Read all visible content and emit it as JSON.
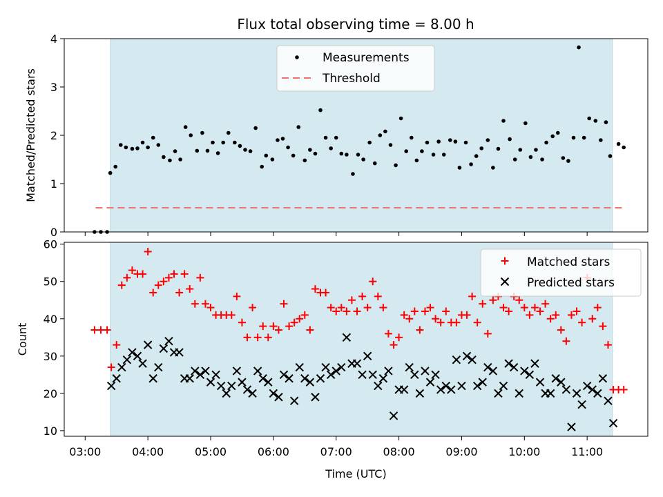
{
  "chart_data": [
    {
      "type": "scatter",
      "title": "Flux total observing time = 8.00 h",
      "ylabel": "Matched/Predicted stars",
      "xlabel": "",
      "ylim": [
        0,
        4
      ],
      "xlim": [
        "02:40",
        "11:58"
      ],
      "yticks": [
        0,
        1,
        2,
        3,
        4
      ],
      "xticks": [
        "03:00",
        "04:00",
        "05:00",
        "06:00",
        "07:00",
        "08:00",
        "09:00",
        "10:00",
        "11:00"
      ],
      "observing_window": [
        "03:24",
        "11:24"
      ],
      "window_color": "#d4eaf0",
      "legend": {
        "placement": "top-center",
        "entries": [
          "Measurements",
          "Threshold"
        ]
      },
      "threshold": {
        "name": "Threshold",
        "value": 0.5,
        "x_range": [
          "03:10",
          "11:35"
        ],
        "color": "#f07070"
      },
      "series": [
        {
          "name": "Measurements",
          "color": "#000000",
          "x": [
            "03:09",
            "03:15",
            "03:21",
            "03:24",
            "03:29",
            "03:34",
            "03:39",
            "03:45",
            "03:50",
            "03:55",
            "04:00",
            "04:05",
            "04:10",
            "04:15",
            "04:21",
            "04:26",
            "04:31",
            "04:36",
            "04:41",
            "04:47",
            "04:52",
            "04:57",
            "05:02",
            "05:07",
            "05:12",
            "05:17",
            "05:23",
            "05:28",
            "05:33",
            "05:38",
            "05:43",
            "05:49",
            "05:53",
            "05:59",
            "06:04",
            "06:09",
            "06:14",
            "06:19",
            "06:24",
            "06:30",
            "06:35",
            "06:40",
            "06:45",
            "06:50",
            "06:55",
            "07:00",
            "07:05",
            "07:10",
            "07:16",
            "07:21",
            "07:26",
            "07:32",
            "07:37",
            "07:42",
            "07:47",
            "07:52",
            "07:57",
            "08:02",
            "08:07",
            "08:12",
            "08:17",
            "08:22",
            "08:27",
            "08:33",
            "08:38",
            "08:43",
            "08:49",
            "08:54",
            "08:58",
            "09:04",
            "09:09",
            "09:14",
            "09:19",
            "09:25",
            "09:30",
            "09:35",
            "09:40",
            "09:46",
            "09:51",
            "09:56",
            "10:01",
            "10:06",
            "10:11",
            "10:17",
            "10:21",
            "10:27",
            "10:32",
            "10:37",
            "10:42",
            "10:47",
            "10:52",
            "10:57",
            "11:02",
            "11:08",
            "11:13",
            "11:18",
            "11:22",
            "11:30",
            "11:35"
          ],
          "y": [
            0,
            0,
            0,
            1.22,
            1.35,
            1.8,
            1.75,
            1.72,
            1.73,
            1.85,
            1.75,
            1.95,
            1.8,
            1.55,
            1.48,
            1.67,
            1.5,
            2.17,
            2.0,
            1.68,
            2.05,
            1.68,
            1.85,
            1.63,
            1.85,
            2.05,
            1.85,
            1.78,
            1.7,
            1.67,
            2.15,
            1.35,
            1.58,
            1.5,
            1.9,
            1.93,
            1.75,
            1.58,
            2.17,
            1.48,
            1.7,
            1.62,
            2.52,
            1.95,
            1.73,
            1.95,
            1.62,
            1.6,
            1.2,
            1.6,
            1.5,
            1.85,
            1.42,
            2.0,
            2.08,
            1.8,
            1.38,
            2.35,
            1.67,
            1.95,
            1.48,
            1.67,
            1.85,
            1.6,
            1.87,
            1.6,
            1.9,
            1.87,
            1.33,
            1.85,
            1.4,
            1.57,
            1.73,
            1.9,
            1.33,
            1.72,
            2.3,
            1.92,
            1.5,
            1.7,
            2.25,
            1.55,
            1.7,
            1.5,
            1.85,
            1.98,
            2.05,
            1.53,
            1.47,
            1.95,
            3.82,
            1.95,
            2.35,
            2.3,
            1.9,
            2.27,
            1.57,
            1.82,
            1.75
          ]
        }
      ]
    },
    {
      "type": "scatter",
      "title": "",
      "ylabel": "Count",
      "xlabel": "Time (UTC)",
      "ylim": [
        8.5,
        60.5
      ],
      "xlim": [
        "02:40",
        "11:58"
      ],
      "yticks": [
        10,
        20,
        30,
        40,
        50,
        60
      ],
      "xticks": [
        "03:00",
        "04:00",
        "05:00",
        "06:00",
        "07:00",
        "08:00",
        "09:00",
        "10:00",
        "11:00"
      ],
      "observing_window": [
        "03:24",
        "11:24"
      ],
      "window_color": "#d4eaf0",
      "legend": {
        "placement": "top-right",
        "entries": [
          "Matched stars",
          "Predicted stars"
        ]
      },
      "series": [
        {
          "name": "Matched stars",
          "marker": "plus",
          "color": "#ff0000",
          "points": [
            [
              "03:09",
              37
            ],
            [
              "03:15",
              37
            ],
            [
              "03:21",
              37
            ],
            [
              "03:25",
              27
            ],
            [
              "03:30",
              33
            ],
            [
              "03:35",
              49
            ],
            [
              "03:40",
              51
            ],
            [
              "03:45",
              53
            ],
            [
              "03:50",
              52
            ],
            [
              "03:55",
              52
            ],
            [
              "04:00",
              58
            ],
            [
              "04:05",
              47
            ],
            [
              "04:10",
              49
            ],
            [
              "04:15",
              50
            ],
            [
              "04:20",
              51
            ],
            [
              "04:25",
              52
            ],
            [
              "04:30",
              47
            ],
            [
              "04:35",
              52
            ],
            [
              "04:40",
              48
            ],
            [
              "04:45",
              44
            ],
            [
              "04:50",
              51
            ],
            [
              "04:55",
              44
            ],
            [
              "05:00",
              43
            ],
            [
              "05:05",
              41
            ],
            [
              "05:10",
              41
            ],
            [
              "05:15",
              41
            ],
            [
              "05:20",
              41
            ],
            [
              "05:25",
              46
            ],
            [
              "05:30",
              39
            ],
            [
              "05:35",
              35
            ],
            [
              "05:40",
              43
            ],
            [
              "05:45",
              35
            ],
            [
              "05:50",
              38
            ],
            [
              "05:55",
              35
            ],
            [
              "06:00",
              38
            ],
            [
              "06:05",
              37
            ],
            [
              "06:10",
              44
            ],
            [
              "06:15",
              38
            ],
            [
              "06:20",
              39
            ],
            [
              "06:25",
              40
            ],
            [
              "06:30",
              41
            ],
            [
              "06:35",
              37
            ],
            [
              "06:40",
              48
            ],
            [
              "06:45",
              47
            ],
            [
              "06:50",
              47
            ],
            [
              "06:55",
              43
            ],
            [
              "07:00",
              42
            ],
            [
              "07:05",
              43
            ],
            [
              "07:10",
              42
            ],
            [
              "07:15",
              45
            ],
            [
              "07:20",
              42
            ],
            [
              "07:25",
              46
            ],
            [
              "07:30",
              43
            ],
            [
              "07:35",
              50
            ],
            [
              "07:40",
              46
            ],
            [
              "07:45",
              43
            ],
            [
              "07:50",
              36
            ],
            [
              "07:55",
              33
            ],
            [
              "08:00",
              35
            ],
            [
              "08:05",
              41
            ],
            [
              "08:10",
              40
            ],
            [
              "08:15",
              42
            ],
            [
              "08:20",
              37
            ],
            [
              "08:25",
              42
            ],
            [
              "08:30",
              43
            ],
            [
              "08:35",
              40
            ],
            [
              "08:40",
              39
            ],
            [
              "08:45",
              42
            ],
            [
              "08:50",
              39
            ],
            [
              "08:55",
              39
            ],
            [
              "09:00",
              41
            ],
            [
              "09:05",
              41
            ],
            [
              "09:10",
              46
            ],
            [
              "09:15",
              39
            ],
            [
              "09:20",
              44
            ],
            [
              "09:25",
              36
            ],
            [
              "09:30",
              45
            ],
            [
              "09:35",
              46
            ],
            [
              "09:40",
              43
            ],
            [
              "09:45",
              42
            ],
            [
              "09:50",
              46
            ],
            [
              "09:55",
              45
            ],
            [
              "10:00",
              43
            ],
            [
              "10:05",
              41
            ],
            [
              "10:10",
              43
            ],
            [
              "10:15",
              42
            ],
            [
              "10:20",
              44
            ],
            [
              "10:25",
              40
            ],
            [
              "10:30",
              41
            ],
            [
              "10:35",
              37
            ],
            [
              "10:40",
              34
            ],
            [
              "10:45",
              41
            ],
            [
              "10:50",
              42
            ],
            [
              "10:55",
              39
            ],
            [
              "11:00",
              51
            ],
            [
              "11:05",
              40
            ],
            [
              "11:10",
              43
            ],
            [
              "11:15",
              38
            ],
            [
              "11:20",
              33
            ],
            [
              "11:25",
              21
            ],
            [
              "11:30",
              21
            ],
            [
              "11:35",
              21
            ]
          ]
        },
        {
          "name": "Predicted stars",
          "marker": "x",
          "color": "#000000",
          "points": [
            [
              "03:25",
              22
            ],
            [
              "03:30",
              24
            ],
            [
              "03:35",
              27
            ],
            [
              "03:40",
              29
            ],
            [
              "03:45",
              31
            ],
            [
              "03:50",
              30
            ],
            [
              "03:55",
              28
            ],
            [
              "04:00",
              33
            ],
            [
              "04:05",
              24
            ],
            [
              "04:10",
              27
            ],
            [
              "04:15",
              32
            ],
            [
              "04:20",
              34
            ],
            [
              "04:25",
              31
            ],
            [
              "04:30",
              31
            ],
            [
              "04:35",
              24
            ],
            [
              "04:40",
              24
            ],
            [
              "04:45",
              26
            ],
            [
              "04:50",
              25
            ],
            [
              "04:55",
              26
            ],
            [
              "05:00",
              23
            ],
            [
              "05:05",
              25
            ],
            [
              "05:10",
              22
            ],
            [
              "05:15",
              20
            ],
            [
              "05:20",
              22
            ],
            [
              "05:25",
              26
            ],
            [
              "05:30",
              23
            ],
            [
              "05:35",
              21
            ],
            [
              "05:40",
              20
            ],
            [
              "05:45",
              26
            ],
            [
              "05:50",
              24
            ],
            [
              "05:55",
              23
            ],
            [
              "06:00",
              20
            ],
            [
              "06:05",
              19
            ],
            [
              "06:10",
              25
            ],
            [
              "06:15",
              24
            ],
            [
              "06:20",
              18
            ],
            [
              "06:25",
              27
            ],
            [
              "06:30",
              24
            ],
            [
              "06:35",
              23
            ],
            [
              "06:40",
              19
            ],
            [
              "06:45",
              24
            ],
            [
              "06:50",
              27
            ],
            [
              "06:55",
              25
            ],
            [
              "07:00",
              26
            ],
            [
              "07:05",
              27
            ],
            [
              "07:10",
              35
            ],
            [
              "07:15",
              28
            ],
            [
              "07:20",
              28
            ],
            [
              "07:25",
              25
            ],
            [
              "07:30",
              30
            ],
            [
              "07:35",
              25
            ],
            [
              "07:40",
              22
            ],
            [
              "07:45",
              24
            ],
            [
              "07:50",
              26
            ],
            [
              "07:55",
              14
            ],
            [
              "08:00",
              21
            ],
            [
              "08:05",
              21
            ],
            [
              "08:10",
              27
            ],
            [
              "08:15",
              25
            ],
            [
              "08:20",
              20
            ],
            [
              "08:25",
              26
            ],
            [
              "08:30",
              23
            ],
            [
              "08:35",
              25
            ],
            [
              "08:40",
              21
            ],
            [
              "08:45",
              22
            ],
            [
              "08:50",
              21
            ],
            [
              "08:55",
              29
            ],
            [
              "09:00",
              22
            ],
            [
              "09:05",
              30
            ],
            [
              "09:10",
              29
            ],
            [
              "09:15",
              22
            ],
            [
              "09:20",
              23
            ],
            [
              "09:25",
              27
            ],
            [
              "09:30",
              26
            ],
            [
              "09:35",
              20
            ],
            [
              "09:40",
              22
            ],
            [
              "09:45",
              28
            ],
            [
              "09:50",
              27
            ],
            [
              "09:55",
              20
            ],
            [
              "10:00",
              26
            ],
            [
              "10:05",
              25
            ],
            [
              "10:10",
              28
            ],
            [
              "10:15",
              23
            ],
            [
              "10:20",
              20
            ],
            [
              "10:25",
              20
            ],
            [
              "10:30",
              24
            ],
            [
              "10:35",
              23
            ],
            [
              "10:40",
              21
            ],
            [
              "10:45",
              11
            ],
            [
              "10:50",
              20
            ],
            [
              "10:55",
              17
            ],
            [
              "11:00",
              22
            ],
            [
              "11:05",
              21
            ],
            [
              "11:10",
              20
            ],
            [
              "11:15",
              24
            ],
            [
              "11:20",
              18
            ],
            [
              "11:25",
              12
            ]
          ]
        }
      ]
    }
  ]
}
